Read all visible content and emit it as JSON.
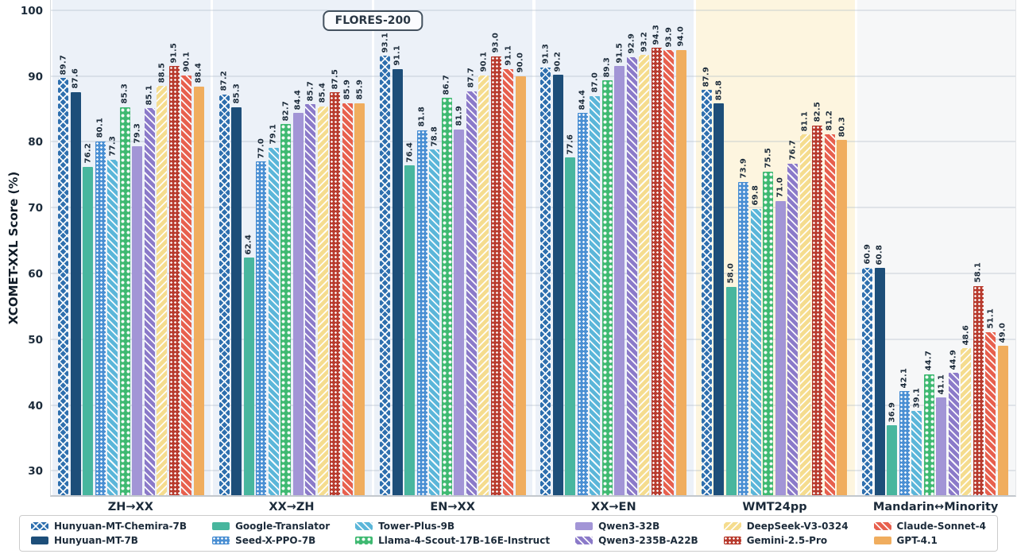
{
  "chart_data": {
    "type": "bar",
    "title": "FLORES-200",
    "ylabel": "XCOMET-XXL Score (%)",
    "ylim": [
      26.3,
      101.8
    ],
    "yticks": [
      30,
      40,
      50,
      60,
      70,
      80,
      90,
      100
    ],
    "grid": true,
    "legend_position": "bottom",
    "categories": [
      "ZH→XX",
      "XX→ZH",
      "EN→XX",
      "XX→EN",
      "WMT24pp",
      "Mandarin↔Minority"
    ],
    "title_spans_first_n_categories": 4,
    "panel_colors": {
      "flores": "#ecf1f8",
      "wmt24pp": "#fdf5df",
      "mandarin_minority": "#f6f7f8"
    },
    "series": [
      {
        "name": "Hunyuan-MT-Chemira-7B",
        "color": "#2e6fae",
        "pattern": "crosshatch",
        "values": [
          89.7,
          87.2,
          93.1,
          91.3,
          87.9,
          60.9
        ]
      },
      {
        "name": "Hunyuan-MT-7B",
        "color": "#1d4e79",
        "pattern": "solid",
        "values": [
          87.6,
          85.3,
          91.1,
          90.2,
          85.8,
          60.8
        ]
      },
      {
        "name": "Google-Translator",
        "color": "#48b69e",
        "pattern": "solid",
        "values": [
          76.2,
          62.4,
          76.4,
          77.6,
          58.0,
          36.9
        ]
      },
      {
        "name": "Seed-X-PPO-7B",
        "color": "#4a8fd3",
        "pattern": "dots-small",
        "values": [
          80.1,
          77.0,
          81.8,
          84.4,
          73.9,
          42.1
        ]
      },
      {
        "name": "Tower-Plus-9B",
        "color": "#5bb6d9",
        "pattern": "stripes",
        "values": [
          77.3,
          79.1,
          78.8,
          87.0,
          69.8,
          39.1
        ]
      },
      {
        "name": "Llama-4-Scout-17B-16E-Instruct",
        "color": "#3eb971",
        "pattern": "dots-large",
        "values": [
          85.3,
          82.7,
          86.7,
          89.3,
          75.5,
          44.7
        ]
      },
      {
        "name": "Qwen3-32B",
        "color": "#a295d6",
        "pattern": "solid",
        "values": [
          79.3,
          84.4,
          81.9,
          91.5,
          71.0,
          41.1
        ]
      },
      {
        "name": "Qwen3-235B-A22B",
        "color": "#8b7ac9",
        "pattern": "stripes",
        "values": [
          85.1,
          85.7,
          87.7,
          92.9,
          76.7,
          44.9
        ]
      },
      {
        "name": "DeepSeek-V3-0324",
        "color": "#f5dc8e",
        "pattern": "stripes-back",
        "values": [
          88.5,
          85.4,
          90.1,
          93.2,
          81.1,
          48.6
        ]
      },
      {
        "name": "Gemini-2.5-Pro",
        "color": "#b83b2e",
        "pattern": "dots-small",
        "values": [
          91.5,
          87.5,
          93.0,
          94.3,
          82.5,
          58.1
        ]
      },
      {
        "name": "Claude-Sonnet-4",
        "color": "#e7604e",
        "pattern": "stripes",
        "values": [
          90.1,
          85.9,
          91.1,
          93.9,
          81.2,
          51.1
        ]
      },
      {
        "name": "GPT-4.1",
        "color": "#f0ad5e",
        "pattern": "solid",
        "values": [
          88.4,
          85.9,
          90.0,
          94.0,
          80.3,
          49.0
        ]
      }
    ]
  }
}
